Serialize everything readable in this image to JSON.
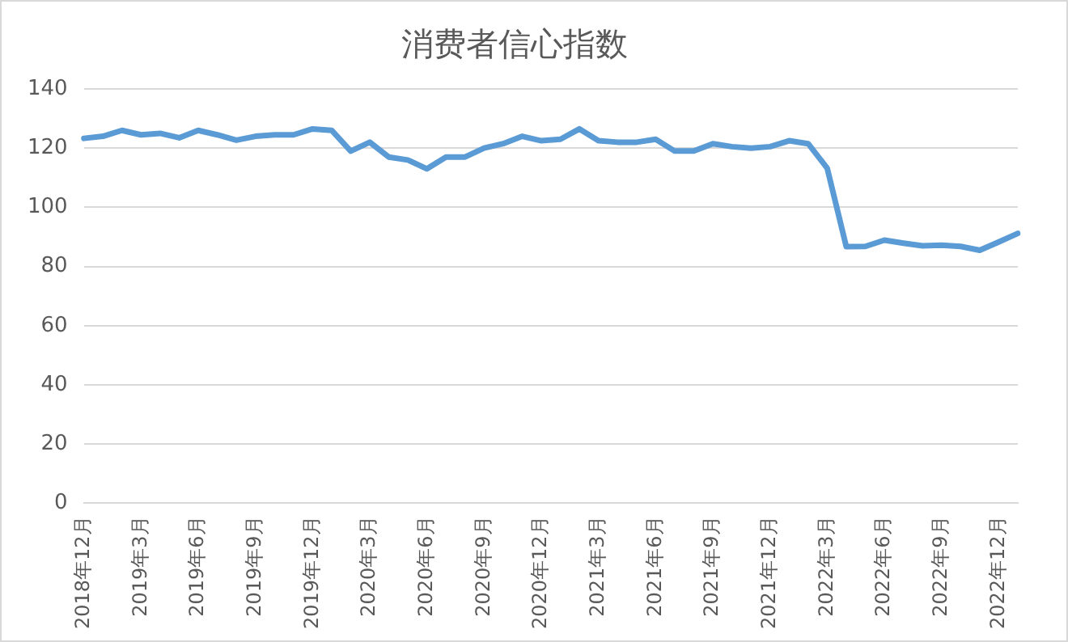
{
  "chart_data": {
    "type": "line",
    "title": "消费者信心指数",
    "categories": [
      "2018年12月",
      null,
      null,
      "2019年3月",
      null,
      null,
      "2019年6月",
      null,
      null,
      "2019年9月",
      null,
      null,
      "2019年12月",
      null,
      null,
      "2020年3月",
      null,
      null,
      "2020年6月",
      null,
      null,
      "2020年9月",
      null,
      null,
      "2020年12月",
      null,
      null,
      "2021年3月",
      null,
      null,
      "2021年6月",
      null,
      null,
      "2021年9月",
      null,
      null,
      "2021年12月",
      null,
      null,
      "2022年3月",
      null,
      null,
      "2022年6月",
      null,
      null,
      "2022年9月",
      null,
      null,
      "2022年12月",
      null
    ],
    "series": [
      {
        "color": "#5b9bd5",
        "values": [
          123.3,
          124,
          126,
          124.5,
          125,
          123.5,
          126,
          124.5,
          122.7,
          124,
          124.5,
          124.5,
          126.5,
          126,
          119,
          122,
          117,
          116,
          113,
          117,
          117,
          120,
          121.5,
          124,
          122.5,
          123,
          126.5,
          122.5,
          122,
          122,
          123,
          119,
          119,
          121.5,
          120.5,
          120,
          120.5,
          122.5,
          121.5,
          113.2,
          86.7,
          86.8,
          88.9,
          87.9,
          87,
          87.2,
          86.8,
          85.5,
          88.3,
          91.2
        ]
      }
    ],
    "ylim": [
      0,
      140
    ],
    "yticks": [
      0,
      20,
      40,
      60,
      80,
      100,
      120,
      140
    ],
    "grid": "y",
    "marker": "none",
    "line_style": "solid"
  }
}
